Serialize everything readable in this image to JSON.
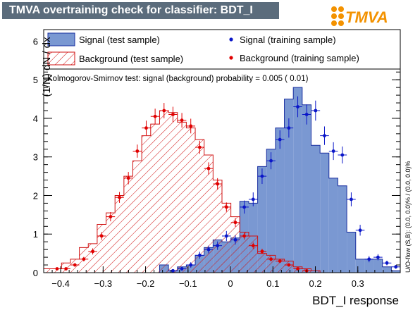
{
  "window": {
    "title": "TMVA overtraining check for classifier: BDT_I",
    "logo_text": "TMVA"
  },
  "colors": {
    "signal_fill": "#7a98d2",
    "signal_line": "#1a2fa0",
    "signal_points": "#0a16c8",
    "background_line": "#d01010",
    "background_points": "#e00000",
    "title_bg": "#5b6c7c",
    "logo_orange": "#f39200"
  },
  "chart_data": {
    "type": "histogram",
    "xlabel": "BDT_I response",
    "ylabel": "(1/N) dN / dx",
    "xlim": [
      -0.44,
      0.4
    ],
    "ylim": [
      0,
      6.3
    ],
    "xticks": [
      -0.4,
      -0.3,
      -0.2,
      -0.1,
      0,
      0.1,
      0.2,
      0.3
    ],
    "xtick_labels": [
      "−0.4",
      "−0.3",
      "−0.2",
      "−0.1",
      "0",
      "0.1",
      "0.2",
      "0.3"
    ],
    "yticks": [
      0,
      1,
      2,
      3,
      4,
      5,
      6
    ],
    "bins": {
      "start": -0.44,
      "width": 0.021,
      "count": 40
    },
    "annotation": "Kolmogorov-Smirnov test: signal (background) probability = 0.005 ( 0.01)",
    "side_label": "U/O-flow (S,B): (0.0, 0.0)% / (0.0, 0.0)%",
    "legend": {
      "signal_test": "Signal (test sample)",
      "background_test": "Background (test sample)",
      "signal_train": "Signal (training sample)",
      "background_train": "Background (training sample)"
    },
    "series": [
      {
        "name": "Signal (test sample)",
        "style": "filled-hist",
        "values": [
          0,
          0,
          0,
          0,
          0,
          0,
          0,
          0,
          0,
          0,
          0,
          0,
          0,
          0.2,
          0.05,
          0.15,
          0.2,
          0.45,
          0.65,
          0.85,
          0.8,
          0.9,
          1.85,
          1.8,
          2.75,
          3.2,
          3.75,
          4.5,
          4.8,
          4.35,
          3.3,
          3.1,
          2.45,
          2.25,
          1.05,
          0.35,
          0.35,
          0.35,
          0.15,
          0.05
        ]
      },
      {
        "name": "Background (test sample)",
        "style": "hatched-hist",
        "values": [
          0.1,
          0.1,
          0.25,
          0.35,
          0.65,
          0.75,
          1.25,
          1.55,
          2.0,
          2.5,
          2.9,
          3.55,
          3.85,
          4.2,
          4.15,
          3.9,
          3.75,
          3.45,
          3.05,
          2.4,
          1.8,
          1.45,
          1.05,
          0.95,
          0.5,
          0.45,
          0.35,
          0.3,
          0.15,
          0.1,
          0.05,
          0,
          0,
          0,
          0,
          0,
          0,
          0,
          0,
          0
        ]
      },
      {
        "name": "Signal (training sample)",
        "style": "points",
        "values": [
          0,
          0,
          0,
          0,
          0,
          0,
          0,
          0,
          0,
          0,
          0,
          0,
          0,
          0,
          0.05,
          0.1,
          0.2,
          0.45,
          0.6,
          0.7,
          0.95,
          0.85,
          1.7,
          1.9,
          2.5,
          2.9,
          3.45,
          3.75,
          4.3,
          4.1,
          4.2,
          3.55,
          3.15,
          3.05,
          1.9,
          1.1,
          0.35,
          0.4,
          0.25,
          0.15
        ],
        "errors": [
          0,
          0,
          0,
          0,
          0,
          0,
          0,
          0,
          0,
          0,
          0,
          0,
          0,
          0,
          0.03,
          0.05,
          0.07,
          0.09,
          0.1,
          0.11,
          0.13,
          0.12,
          0.17,
          0.18,
          0.2,
          0.22,
          0.24,
          0.25,
          0.27,
          0.26,
          0.26,
          0.24,
          0.23,
          0.22,
          0.18,
          0.14,
          0.08,
          0.08,
          0.06,
          0.05
        ]
      },
      {
        "name": "Background (training sample)",
        "style": "points",
        "values": [
          0,
          0.1,
          0.1,
          0.2,
          0.35,
          0.55,
          0.95,
          1.45,
          1.95,
          2.45,
          3.15,
          3.75,
          4.05,
          4.2,
          4.1,
          3.95,
          3.8,
          3.25,
          2.7,
          2.3,
          1.7,
          1.3,
          0.95,
          0.7,
          0.55,
          0.35,
          0.3,
          0.2,
          0.1,
          0.05,
          0,
          0,
          0,
          0,
          0,
          0,
          0,
          0,
          0,
          0
        ],
        "errors": [
          0,
          0.03,
          0.03,
          0.04,
          0.06,
          0.08,
          0.1,
          0.12,
          0.14,
          0.16,
          0.17,
          0.19,
          0.2,
          0.2,
          0.2,
          0.19,
          0.19,
          0.17,
          0.16,
          0.15,
          0.12,
          0.11,
          0.09,
          0.08,
          0.07,
          0.06,
          0.05,
          0.04,
          0.03,
          0.02,
          0,
          0,
          0,
          0,
          0,
          0,
          0,
          0,
          0,
          0
        ]
      }
    ]
  }
}
